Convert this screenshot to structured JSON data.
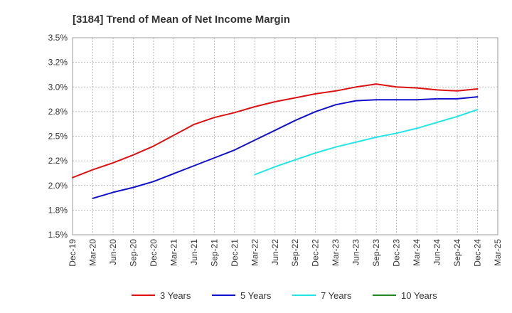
{
  "chart_data": {
    "type": "line",
    "title": "[3184]  Trend of Mean of Net Income Margin",
    "xlabel": "",
    "ylabel": "",
    "ylim": [
      1.5,
      3.5
    ],
    "y_ticks": [
      "3.5%",
      "3.2%",
      "3.0%",
      "2.8%",
      "2.5%",
      "2.2%",
      "2.0%",
      "1.8%",
      "1.5%"
    ],
    "x_ticks": [
      "Dec-19",
      "Mar-20",
      "Jun-20",
      "Sep-20",
      "Dec-20",
      "Mar-21",
      "Jun-21",
      "Sep-21",
      "Dec-21",
      "Mar-22",
      "Jun-22",
      "Sep-22",
      "Dec-22",
      "Mar-23",
      "Jun-23",
      "Sep-23",
      "Dec-23",
      "Mar-24",
      "Jun-24",
      "Sep-24",
      "Dec-24",
      "Mar-25"
    ],
    "grid": true,
    "legend_position": "bottom",
    "series": [
      {
        "name": "3 Years",
        "color": "#dd1111",
        "values": [
          2.08,
          2.16,
          2.23,
          2.31,
          2.4,
          2.51,
          2.62,
          2.69,
          2.74,
          2.8,
          2.85,
          2.89,
          2.93,
          2.96,
          3.0,
          3.03,
          3.0,
          2.99,
          2.97,
          2.96,
          2.98
        ]
      },
      {
        "name": "5 Years",
        "color": "#1111cc",
        "values": [
          null,
          1.87,
          1.93,
          1.98,
          2.04,
          2.12,
          2.2,
          2.28,
          2.36,
          2.46,
          2.56,
          2.66,
          2.75,
          2.82,
          2.86,
          2.87,
          2.87,
          2.87,
          2.88,
          2.88,
          2.9
        ]
      },
      {
        "name": "7 Years",
        "color": "#22e5e5",
        "values": [
          null,
          null,
          null,
          null,
          null,
          null,
          null,
          null,
          null,
          2.11,
          2.19,
          2.26,
          2.33,
          2.39,
          2.44,
          2.49,
          2.53,
          2.58,
          2.64,
          2.7,
          2.77
        ]
      },
      {
        "name": "10 Years",
        "color": "#228822",
        "values": []
      }
    ]
  }
}
